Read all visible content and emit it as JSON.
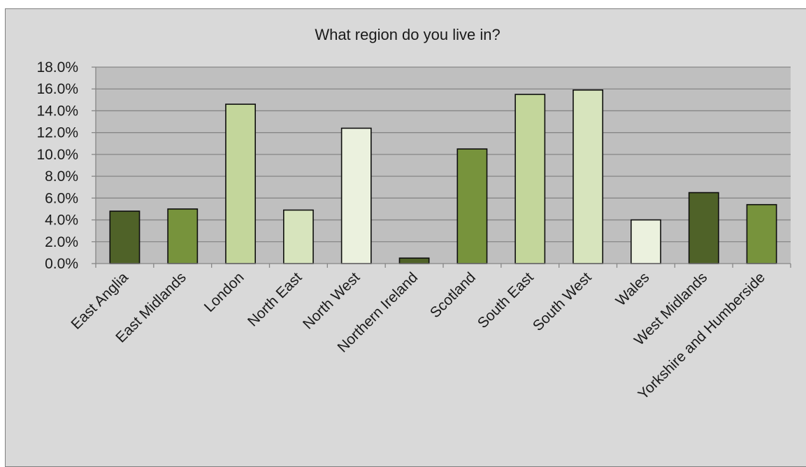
{
  "chart_data": {
    "type": "bar",
    "title": "What region do you live in?",
    "xlabel": "",
    "ylabel": "",
    "categories": [
      "East Anglia",
      "East Midlands",
      "London",
      "North East",
      "North West",
      "Northern Ireland",
      "Scotland",
      "South East",
      "South West",
      "Wales",
      "West Midlands",
      "Yorkshire and Humberside"
    ],
    "values": [
      4.8,
      5.0,
      14.6,
      4.9,
      12.4,
      0.5,
      10.5,
      15.5,
      15.9,
      4.0,
      6.5,
      5.4
    ],
    "ylim": [
      0,
      18
    ],
    "yticks": [
      "0.0%",
      "2.0%",
      "4.0%",
      "6.0%",
      "8.0%",
      "10.0%",
      "12.0%",
      "14.0%",
      "16.0%",
      "18.0%"
    ],
    "grid": true,
    "legend": "none",
    "bar_colors": [
      "#4f6228",
      "#77933c",
      "#c3d69b",
      "#d7e4bd",
      "#ebf1de",
      "#4f6228",
      "#77933c",
      "#c3d69b",
      "#d7e4bd",
      "#ebf1de",
      "#4f6228",
      "#77933c"
    ],
    "plot_background": "#bfbfbf",
    "chart_background": "#d9d9d9"
  }
}
